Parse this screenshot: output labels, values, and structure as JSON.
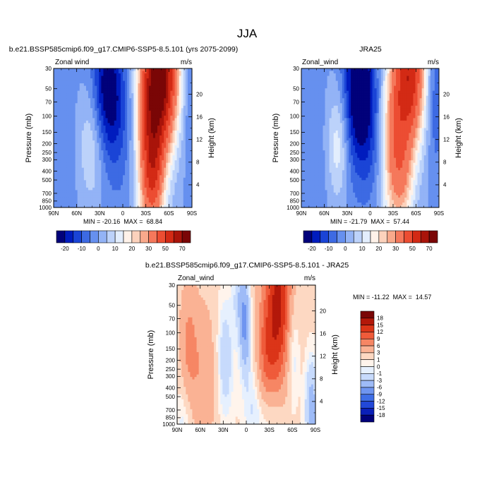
{
  "figure": {
    "title": "JJA"
  },
  "palettes": {
    "top": [
      "#01017a",
      "#001cbe",
      "#1a44d6",
      "#3d6ae3",
      "#6690ef",
      "#93b3f6",
      "#bcd2fa",
      "#e3eefd",
      "#fff2e9",
      "#fcd2bc",
      "#f9a98b",
      "#f5785b",
      "#ec4d32",
      "#d32a15",
      "#a9140a",
      "#7a0606"
    ],
    "diff": [
      "#01017a",
      "#0a1fb8",
      "#2248d8",
      "#3f6ee6",
      "#6f95f0",
      "#9ebbf7",
      "#c7dafc",
      "#e6f0fe",
      "#fff4ec",
      "#fdd8c2",
      "#fab294",
      "#f68664",
      "#ef5b3a",
      "#db3518",
      "#b3180a",
      "#7a0606"
    ]
  },
  "chart_data": [
    {
      "id": "model",
      "type": "contour",
      "title": "b.e21.BSSP585cmip6.f09_g17.CMIP6-SSP5-8.5.101 (yrs 2075-2099)",
      "left_label": "Zonal wind",
      "units": "m/s",
      "xlabel": "",
      "ylabel": "Pressure (mb)",
      "y2label": "Height (km)",
      "x_ticks": [
        "90N",
        "60N",
        "30N",
        "0",
        "30S",
        "60S",
        "90S"
      ],
      "x_tick_values": [
        90,
        60,
        30,
        0,
        -30,
        -60,
        -90
      ],
      "y_ticks": [
        "30",
        "50",
        "70",
        "100",
        "150",
        "200",
        "250",
        "300",
        "400",
        "500",
        "700",
        "850",
        "1000"
      ],
      "y_tick_values": [
        30,
        50,
        70,
        100,
        150,
        200,
        250,
        300,
        400,
        500,
        700,
        850,
        1000
      ],
      "y2_ticks": [
        "20",
        "16",
        "12",
        "8",
        "4"
      ],
      "y2_tick_values": [
        20,
        16,
        12,
        8,
        4
      ],
      "stats_text": "MIN = -20.16  MAX =  68.84",
      "min": -20.16,
      "max": 68.84,
      "levels": [
        -20,
        -15,
        -10,
        -5,
        0,
        5,
        10,
        15,
        20,
        25,
        30,
        40,
        50,
        60,
        70
      ],
      "colorbar_labels": [
        "-20",
        "-10",
        "0",
        "10",
        "20",
        "30",
        "50",
        "70"
      ],
      "colorbar_label_values": [
        -20,
        -10,
        0,
        10,
        20,
        30,
        50,
        70
      ],
      "field": {
        "base": 0,
        "features": [
          {
            "lat": -50,
            "p": 35,
            "amp": 70,
            "wl": 16,
            "wp": 1.3
          },
          {
            "lat": -35,
            "p": 200,
            "amp": 38,
            "wl": 13,
            "wp": 1.7
          },
          {
            "lat": -40,
            "p": 500,
            "amp": 18,
            "wl": 10,
            "wp": 0.9
          },
          {
            "lat": 40,
            "p": 200,
            "amp": 14,
            "wl": 13,
            "wp": 1.1
          },
          {
            "lat": 20,
            "p": 50,
            "amp": -22,
            "wl": 14,
            "wp": 1.1
          },
          {
            "lat": 8,
            "p": 150,
            "amp": -8,
            "wl": 25,
            "wp": 1.4
          },
          {
            "lat": -88,
            "p": 60,
            "amp": -8,
            "wl": 8,
            "wp": 1.4
          },
          {
            "lat": 80,
            "p": 300,
            "amp": -3,
            "wl": 20,
            "wp": 2.2
          }
        ]
      }
    },
    {
      "id": "obs",
      "type": "contour",
      "title": "JRA25",
      "left_label": "Zonal_wind",
      "units": "m/s",
      "xlabel": "",
      "ylabel": "Pressure (mb)",
      "y2label": "Height (km)",
      "x_ticks": [
        "90N",
        "60N",
        "30N",
        "0",
        "30S",
        "60S",
        "90S"
      ],
      "x_tick_values": [
        90,
        60,
        30,
        0,
        -30,
        -60,
        -90
      ],
      "y_ticks": [
        "30",
        "50",
        "70",
        "100",
        "150",
        "200",
        "250",
        "300",
        "400",
        "500",
        "700",
        "850",
        "1000"
      ],
      "y_tick_values": [
        30,
        50,
        70,
        100,
        150,
        200,
        250,
        300,
        400,
        500,
        700,
        850,
        1000
      ],
      "y2_ticks": [
        "20",
        "16",
        "12",
        "8",
        "4"
      ],
      "y2_tick_values": [
        20,
        16,
        12,
        8,
        4
      ],
      "stats_text": "MIN = -21.79  MAX =  57.44",
      "min": -21.79,
      "max": 57.44,
      "levels": [
        -20,
        -15,
        -10,
        -5,
        0,
        5,
        10,
        15,
        20,
        25,
        30,
        40,
        50,
        60,
        70
      ],
      "colorbar_labels": [
        "-20",
        "-10",
        "0",
        "10",
        "20",
        "30",
        "50",
        "70"
      ],
      "colorbar_label_values": [
        -20,
        -10,
        0,
        10,
        20,
        30,
        50,
        70
      ],
      "field": {
        "base": 0,
        "features": [
          {
            "lat": -52,
            "p": 35,
            "amp": 56,
            "wl": 14,
            "wp": 1.3
          },
          {
            "lat": -30,
            "p": 200,
            "amp": 32,
            "wl": 12,
            "wp": 1.6
          },
          {
            "lat": -45,
            "p": 500,
            "amp": 15,
            "wl": 10,
            "wp": 0.9
          },
          {
            "lat": 42,
            "p": 200,
            "amp": 15,
            "wl": 10,
            "wp": 1.0
          },
          {
            "lat": 15,
            "p": 40,
            "amp": -24,
            "wl": 14,
            "wp": 1.2
          },
          {
            "lat": 5,
            "p": 150,
            "amp": -12,
            "wl": 20,
            "wp": 1.3
          },
          {
            "lat": -85,
            "p": 60,
            "amp": -10,
            "wl": 8,
            "wp": 1.4
          },
          {
            "lat": 75,
            "p": 400,
            "amp": -4,
            "wl": 15,
            "wp": 2.0
          }
        ]
      }
    },
    {
      "id": "diff",
      "type": "contour",
      "title": "b.e21.BSSP585cmip6.f09_g17.CMIP6-SSP5-8.5.101 - JRA25",
      "left_label": "Zonal_wind",
      "units": "m/s",
      "xlabel": "",
      "ylabel": "Pressure (mb)",
      "y2label": "Height (km)",
      "x_ticks": [
        "90N",
        "60N",
        "30N",
        "0",
        "30S",
        "60S",
        "90S"
      ],
      "x_tick_values": [
        90,
        60,
        30,
        0,
        -30,
        -60,
        -90
      ],
      "y_ticks": [
        "30",
        "50",
        "70",
        "100",
        "150",
        "200",
        "250",
        "300",
        "400",
        "500",
        "700",
        "850",
        "1000"
      ],
      "y_tick_values": [
        30,
        50,
        70,
        100,
        150,
        200,
        250,
        300,
        400,
        500,
        700,
        850,
        1000
      ],
      "y2_ticks": [
        "20",
        "16",
        "12",
        "8",
        "4"
      ],
      "y2_tick_values": [
        20,
        16,
        12,
        8,
        4
      ],
      "stats_text": "MIN = -11.22  MAX =  14.57",
      "min": -11.22,
      "max": 14.57,
      "levels": [
        -18,
        -15,
        -12,
        -9,
        -6,
        -3,
        -1,
        0,
        1,
        3,
        6,
        9,
        12,
        15,
        18
      ],
      "colorbar_labels": [
        "18",
        "15",
        "12",
        "9",
        "6",
        "3",
        "1",
        "0",
        "-1",
        "-3",
        "-6",
        "-9",
        "-12",
        "-15",
        "-18"
      ],
      "colorbar_label_values": [
        18,
        15,
        12,
        9,
        6,
        3,
        1,
        0,
        -1,
        -3,
        -6,
        -9,
        -12,
        -15,
        -18
      ],
      "field": {
        "base": 1.5,
        "features": [
          {
            "lat": -42,
            "p": 45,
            "amp": 14,
            "wl": 12,
            "wp": 1.5
          },
          {
            "lat": -25,
            "p": 200,
            "amp": 7,
            "wl": 10,
            "wp": 1.2
          },
          {
            "lat": 2,
            "p": 80,
            "amp": -8,
            "wl": 5,
            "wp": 0.8
          },
          {
            "lat": 10,
            "p": 40,
            "amp": -3,
            "wl": 6,
            "wp": 0.6
          },
          {
            "lat": 28,
            "p": 200,
            "amp": -4,
            "wl": 8,
            "wp": 1.1
          },
          {
            "lat": -10,
            "p": 500,
            "amp": -3,
            "wl": 10,
            "wp": 1.0
          },
          {
            "lat": 55,
            "p": 300,
            "amp": 4,
            "wl": 12,
            "wp": 1.3
          },
          {
            "lat": 75,
            "p": 150,
            "amp": 5,
            "wl": 8,
            "wp": 1.2
          },
          {
            "lat": -60,
            "p": 150,
            "amp": -4,
            "wl": 6,
            "wp": 1.0
          },
          {
            "lat": -85,
            "p": 700,
            "amp": -6,
            "wl": 6,
            "wp": 0.9
          },
          {
            "lat": -30,
            "p": 800,
            "amp": -4,
            "wl": 12,
            "wp": 0.6
          },
          {
            "lat": 80,
            "p": 800,
            "amp": -3,
            "wl": 8,
            "wp": 0.8
          }
        ]
      }
    }
  ]
}
